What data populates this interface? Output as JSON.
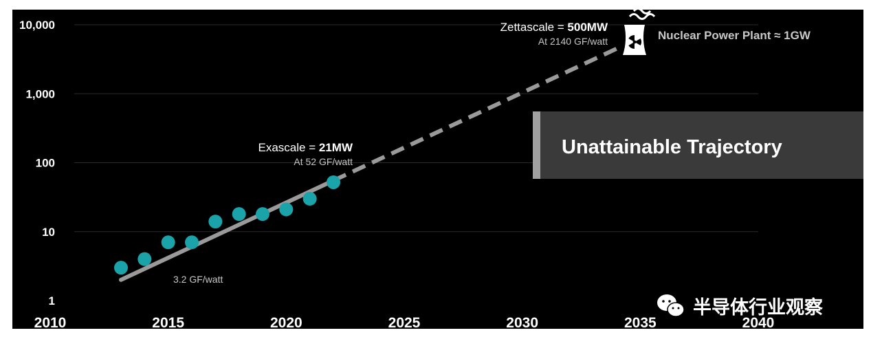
{
  "chart_data": {
    "type": "scatter",
    "y_scale": "log",
    "ylim": [
      1,
      10000
    ],
    "xlim": [
      2010,
      2040
    ],
    "y_ticks": [
      "10,000",
      "1,000",
      "100",
      "10",
      "1"
    ],
    "y_tick_values": [
      10000,
      1000,
      100,
      10,
      1
    ],
    "x_ticks": [
      "2010",
      "2015",
      "2020",
      "2025",
      "2030",
      "2035",
      "2040"
    ],
    "x_tick_values": [
      2010,
      2015,
      2020,
      2025,
      2030,
      2035,
      2040
    ],
    "grid": "horizontal",
    "series": [
      {
        "points": [
          {
            "x": 2013,
            "y": 3
          },
          {
            "x": 2014,
            "y": 4
          },
          {
            "x": 2015,
            "y": 7
          },
          {
            "x": 2016,
            "y": 7
          },
          {
            "x": 2017,
            "y": 14
          },
          {
            "x": 2018,
            "y": 18
          },
          {
            "x": 2019,
            "y": 18
          },
          {
            "x": 2020,
            "y": 21
          },
          {
            "x": 2021,
            "y": 30
          },
          {
            "x": 2022,
            "y": 52
          }
        ],
        "color": "#1aa3a8"
      }
    ],
    "trend_solid": {
      "from": {
        "x": 2013,
        "y": 2
      },
      "to": {
        "x": 2022,
        "y": 55
      },
      "color": "#9a9a9a"
    },
    "trend_dashed": {
      "from": {
        "x": 2022,
        "y": 55
      },
      "to": {
        "x": 2034,
        "y": 4500
      },
      "color": "#9a9a9a"
    },
    "annotations": {
      "exascale": {
        "prefix": "Exascale = ",
        "bold": "21MW",
        "sub": "At 52 GF/watt"
      },
      "zettascale": {
        "prefix": "Zettascale = ",
        "bold": "500MW",
        "sub": "At 2140 GF/watt"
      },
      "start_label": "3.2 GF/watt",
      "nuclear": "Nuclear Power Plant ≈ 1GW",
      "callout": "Unattainable Trajectory"
    }
  },
  "watermark": {
    "text": "半导体行业观察",
    "icon": "wechat-icon"
  },
  "colors": {
    "background": "#000000",
    "dots": "#1aa3a8",
    "trend": "#9a9a9a",
    "callout_bg": "#3a3a3a",
    "callout_bar": "#a0a0a0"
  }
}
